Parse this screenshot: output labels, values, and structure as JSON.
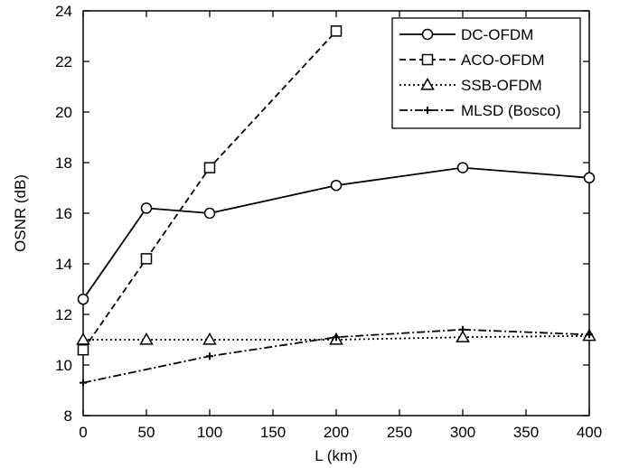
{
  "chart_data": {
    "type": "line",
    "title": "",
    "xlabel": "L (km)",
    "ylabel": "OSNR (dB)",
    "xlim": [
      0,
      400
    ],
    "ylim": [
      8,
      24
    ],
    "xticks": [
      0,
      50,
      100,
      150,
      200,
      250,
      300,
      350,
      400
    ],
    "yticks": [
      8,
      10,
      12,
      14,
      16,
      18,
      20,
      22,
      24
    ],
    "grid": false,
    "legend_position": "top-right",
    "series": [
      {
        "name": "DC-OFDM",
        "marker": "circle",
        "line_style": "solid",
        "x": [
          0,
          50,
          100,
          200,
          300,
          400
        ],
        "y": [
          12.6,
          16.2,
          16.0,
          17.1,
          17.8,
          17.4
        ]
      },
      {
        "name": "ACO-OFDM",
        "marker": "square",
        "line_style": "dashed",
        "x": [
          0,
          50,
          100,
          200
        ],
        "y": [
          10.6,
          14.2,
          17.8,
          23.2
        ]
      },
      {
        "name": "SSB-OFDM",
        "marker": "triangle",
        "line_style": "dotted",
        "x": [
          0,
          50,
          100,
          200,
          300,
          400
        ],
        "y": [
          11.0,
          11.0,
          11.0,
          11.0,
          11.1,
          11.15
        ]
      },
      {
        "name": "MLSD (Bosco)",
        "marker": "plus",
        "line_style": "dash-dot",
        "x": [
          0,
          100,
          200,
          300,
          400
        ],
        "y": [
          9.3,
          10.35,
          11.1,
          11.4,
          11.2
        ]
      }
    ]
  }
}
